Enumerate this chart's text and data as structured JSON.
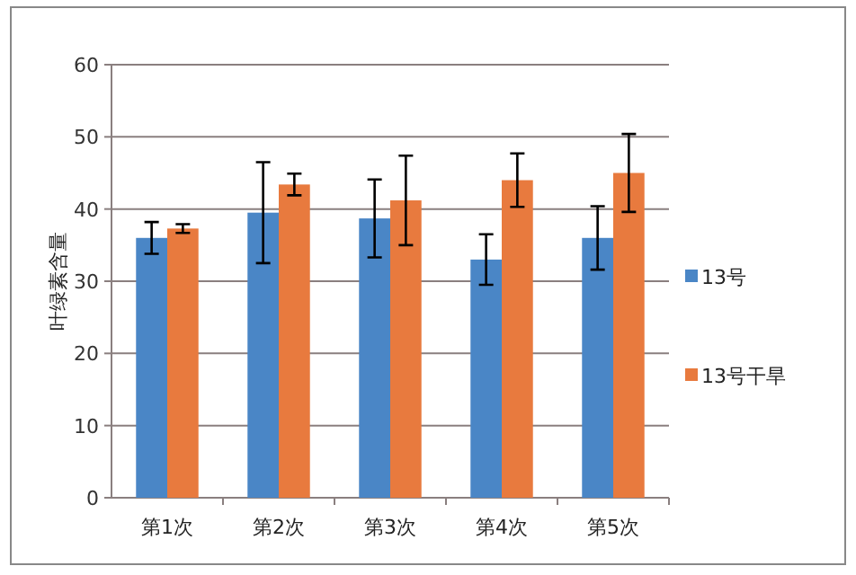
{
  "chart_data": {
    "type": "bar",
    "ylabel": "叶绿素含量",
    "categories": [
      "第1次",
      "第2次",
      "第3次",
      "第4次",
      "第5次"
    ],
    "series": [
      {
        "name": "13号",
        "color": "#4a86c6",
        "values": [
          36,
          39.5,
          38.7,
          33,
          36
        ],
        "errors": [
          2.2,
          7,
          5.4,
          3.5,
          4.4
        ]
      },
      {
        "name": "13号干旱",
        "color": "#e87a3e",
        "values": [
          37.3,
          43.4,
          41.2,
          44,
          45
        ],
        "errors": [
          0.6,
          1.5,
          6.2,
          3.7,
          5.4
        ]
      }
    ],
    "ylim": [
      0,
      60
    ],
    "yticks": [
      0,
      10,
      20,
      30,
      40,
      50,
      60
    ],
    "grid": "y",
    "legend": "right"
  }
}
